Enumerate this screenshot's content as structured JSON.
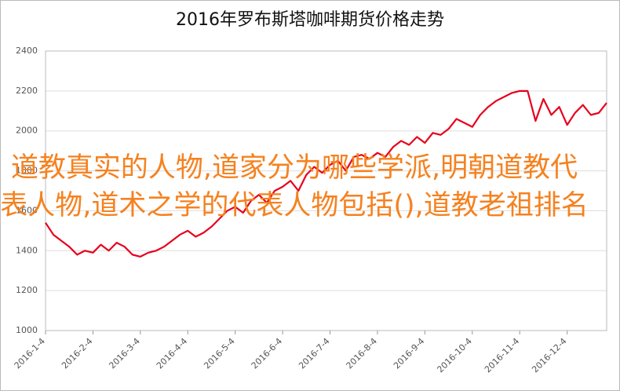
{
  "chart_data": {
    "type": "line",
    "title": "2016年罗布斯塔咖啡期货价格走势",
    "categories": [
      "2016-1-4",
      null,
      null,
      null,
      null,
      null,
      "2016-2-4",
      null,
      null,
      null,
      null,
      null,
      "2016-3-4",
      null,
      null,
      null,
      null,
      null,
      "2016-4-4",
      null,
      null,
      null,
      null,
      null,
      "2016-5-4",
      null,
      null,
      null,
      null,
      null,
      "2016-6-4",
      null,
      null,
      null,
      null,
      null,
      "2016-7-4",
      null,
      null,
      null,
      null,
      null,
      "2016-8-4",
      null,
      null,
      null,
      null,
      null,
      "2016-9-4",
      null,
      null,
      null,
      null,
      null,
      "2016-10-4",
      null,
      null,
      null,
      null,
      null,
      "2016-11-4",
      null,
      null,
      null,
      null,
      null,
      "2016-12-4",
      null,
      null,
      null,
      null,
      null
    ],
    "series": [
      {
        "color": "#e8001c",
        "values": [
          1540,
          1480,
          1450,
          1420,
          1380,
          1400,
          1390,
          1430,
          1400,
          1440,
          1420,
          1380,
          1370,
          1390,
          1400,
          1420,
          1450,
          1480,
          1500,
          1470,
          1490,
          1520,
          1560,
          1600,
          1620,
          1590,
          1650,
          1680,
          1640,
          1700,
          1720,
          1750,
          1700,
          1780,
          1820,
          1790,
          1830,
          1850,
          1800,
          1870,
          1880,
          1860,
          1890,
          1870,
          1920,
          1950,
          1930,
          1970,
          1940,
          1990,
          1980,
          2010,
          2060,
          2040,
          2020,
          2080,
          2120,
          2150,
          2170,
          2190,
          2200,
          2200,
          2050,
          2160,
          2080,
          2120,
          2030,
          2090,
          2130,
          2080,
          2090,
          2140
        ]
      }
    ],
    "ylim": [
      1000,
      2400
    ],
    "yticks": [
      1000,
      1200,
      1400,
      1600,
      1800,
      2000,
      2200,
      2400
    ],
    "grid": true
  },
  "overlay_text": "道教真实的人物,道家分为哪些学派,明朝道教代表人物,道术之学的代表人物包括(),道教老祖排名"
}
